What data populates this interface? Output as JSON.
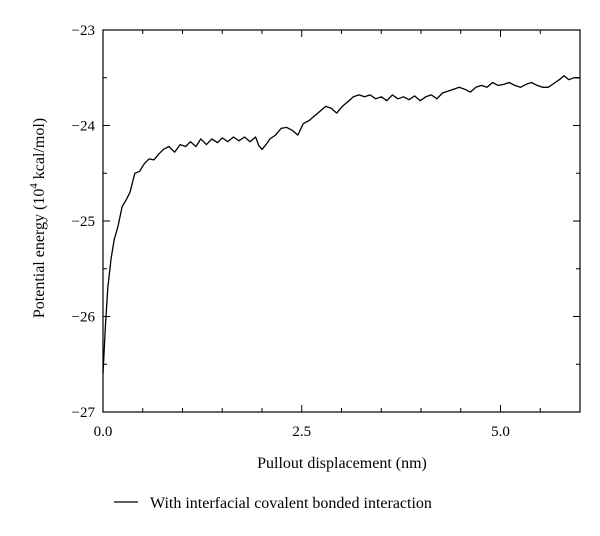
{
  "chart_data": {
    "type": "line",
    "title": "",
    "xlabel": "Pullout displacement (nm)",
    "ylabel_prefix": "Potential energy (10",
    "ylabel_sup": "4",
    "ylabel_suffix": " kcal/mol)",
    "xlim": [
      0,
      6
    ],
    "ylim": [
      -27,
      -23
    ],
    "x_major_ticks": [
      0.0,
      2.5,
      5.0
    ],
    "x_major_tick_labels": [
      "0.0",
      "2.5",
      "5.0"
    ],
    "x_minor_ticks": [
      0.5,
      1.0,
      1.5,
      2.0,
      3.0,
      3.5,
      4.0,
      4.5,
      5.5
    ],
    "y_major_ticks": [
      -27,
      -26,
      -25,
      -24,
      -23
    ],
    "y_major_tick_labels": [
      "−27",
      "−26",
      "−25",
      "−24",
      "−23"
    ],
    "y_minor_ticks": [
      -26.5,
      -25.5,
      -24.5,
      -23.5
    ],
    "grid": false,
    "legend_position": "bottom-left",
    "series": [
      {
        "name": "With interfacial covalent bonded interaction",
        "color": "#000000",
        "x": [
          0.0,
          0.03,
          0.06,
          0.1,
          0.14,
          0.19,
          0.24,
          0.29,
          0.34,
          0.4,
          0.46,
          0.52,
          0.58,
          0.64,
          0.7,
          0.76,
          0.83,
          0.9,
          0.97,
          1.04,
          1.1,
          1.17,
          1.23,
          1.3,
          1.37,
          1.44,
          1.5,
          1.57,
          1.64,
          1.71,
          1.78,
          1.85,
          1.92,
          1.96,
          2.0,
          2.05,
          2.1,
          2.17,
          2.24,
          2.31,
          2.38,
          2.45,
          2.52,
          2.59,
          2.66,
          2.73,
          2.8,
          2.87,
          2.94,
          3.01,
          3.08,
          3.15,
          3.22,
          3.29,
          3.36,
          3.43,
          3.5,
          3.57,
          3.64,
          3.71,
          3.78,
          3.85,
          3.92,
          3.99,
          4.06,
          4.13,
          4.2,
          4.27,
          4.34,
          4.41,
          4.48,
          4.55,
          4.62,
          4.69,
          4.76,
          4.83,
          4.9,
          4.97,
          5.04,
          5.11,
          5.18,
          5.25,
          5.32,
          5.39,
          5.46,
          5.53,
          5.6,
          5.67,
          5.74,
          5.8,
          5.86,
          5.92,
          5.98,
          6.0
        ],
        "y": [
          -26.6,
          -26.1,
          -25.7,
          -25.4,
          -25.2,
          -25.05,
          -24.85,
          -24.78,
          -24.7,
          -24.5,
          -24.48,
          -24.4,
          -24.35,
          -24.36,
          -24.3,
          -24.25,
          -24.22,
          -24.28,
          -24.2,
          -24.22,
          -24.17,
          -24.22,
          -24.14,
          -24.2,
          -24.14,
          -24.18,
          -24.13,
          -24.17,
          -24.12,
          -24.16,
          -24.12,
          -24.17,
          -24.12,
          -24.21,
          -24.25,
          -24.2,
          -24.14,
          -24.1,
          -24.03,
          -24.02,
          -24.05,
          -24.1,
          -23.98,
          -23.95,
          -23.9,
          -23.85,
          -23.8,
          -23.82,
          -23.87,
          -23.8,
          -23.75,
          -23.7,
          -23.68,
          -23.7,
          -23.68,
          -23.72,
          -23.7,
          -23.74,
          -23.68,
          -23.72,
          -23.7,
          -23.73,
          -23.69,
          -23.74,
          -23.7,
          -23.68,
          -23.72,
          -23.66,
          -23.64,
          -23.62,
          -23.6,
          -23.62,
          -23.65,
          -23.6,
          -23.58,
          -23.6,
          -23.55,
          -23.58,
          -23.57,
          -23.55,
          -23.58,
          -23.6,
          -23.57,
          -23.55,
          -23.58,
          -23.6,
          -23.6,
          -23.56,
          -23.52,
          -23.48,
          -23.52,
          -23.5,
          -23.5,
          -23.5
        ]
      }
    ]
  }
}
